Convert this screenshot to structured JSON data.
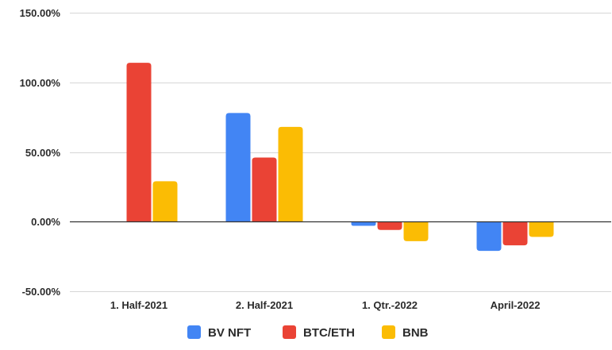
{
  "chart_data": {
    "type": "bar",
    "title": "",
    "xlabel": "",
    "ylabel": "",
    "ylim": [
      -50,
      150
    ],
    "yticks": [
      -50,
      0,
      50,
      100,
      150
    ],
    "ytick_labels": [
      "-50.00%",
      "0.00%",
      "50.00%",
      "100.00%",
      "150.00%"
    ],
    "categories": [
      "1. Half-2021",
      "2. Half-2021",
      "1. Qtr.-2022",
      "April-2022"
    ],
    "series": [
      {
        "name": "BV NFT",
        "color": "#4285f4",
        "values": [
          0,
          78,
          -3,
          -21
        ]
      },
      {
        "name": "BTC/ETH",
        "color": "#ea4335",
        "values": [
          114,
          46,
          -6,
          -17
        ]
      },
      {
        "name": "BNB",
        "color": "#fbbc04",
        "values": [
          29,
          68,
          -14,
          -11
        ]
      }
    ],
    "grid": true,
    "legend_position": "bottom"
  }
}
